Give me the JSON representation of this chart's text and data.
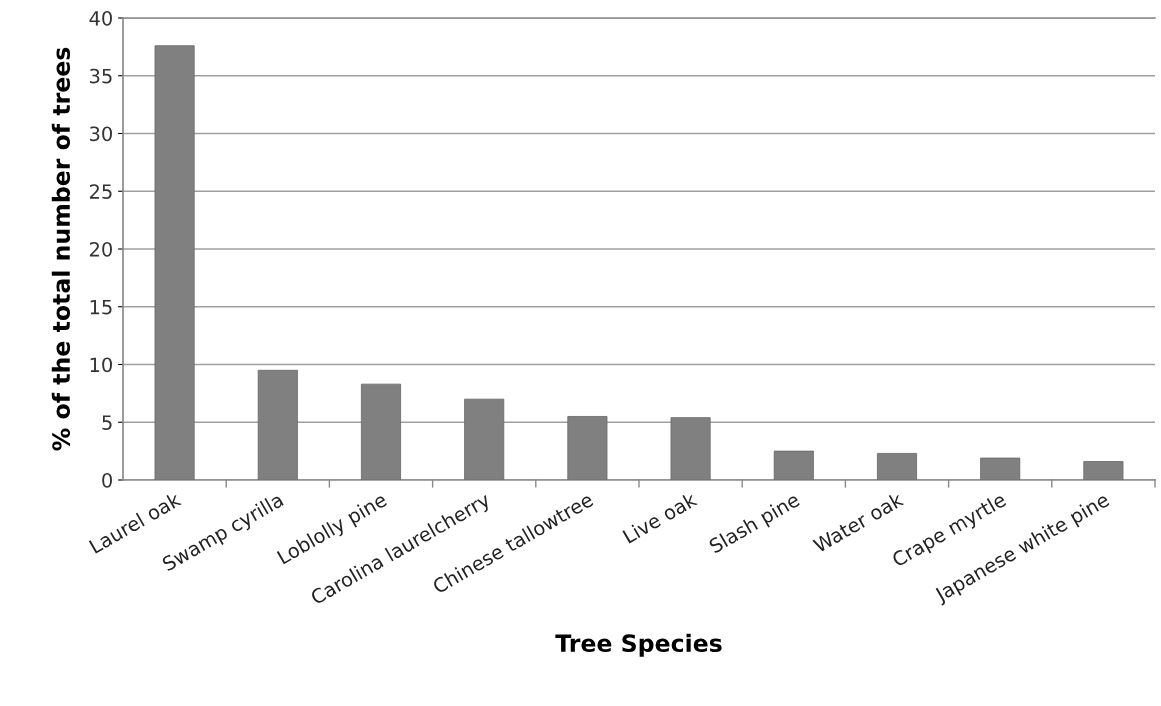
{
  "chart_data": {
    "type": "bar",
    "xlabel": "Tree Species",
    "ylabel": "% of the total number of trees",
    "categories": [
      "Laurel oak",
      "Swamp cyrilla",
      "Loblolly pine",
      "Carolina laurelcherry",
      "Chinese tallowtree",
      "Live oak",
      "Slash pine",
      "Water oak",
      "Crape myrtle",
      "Japanese white pine"
    ],
    "values": [
      37.6,
      9.5,
      8.3,
      7.0,
      5.5,
      5.4,
      2.5,
      2.3,
      1.9,
      1.6
    ],
    "color": "#808080",
    "ylim": [
      0,
      40
    ],
    "yticks": [
      0,
      5,
      10,
      15,
      20,
      25,
      30,
      35,
      40
    ],
    "grid": "y",
    "legend": false
  }
}
